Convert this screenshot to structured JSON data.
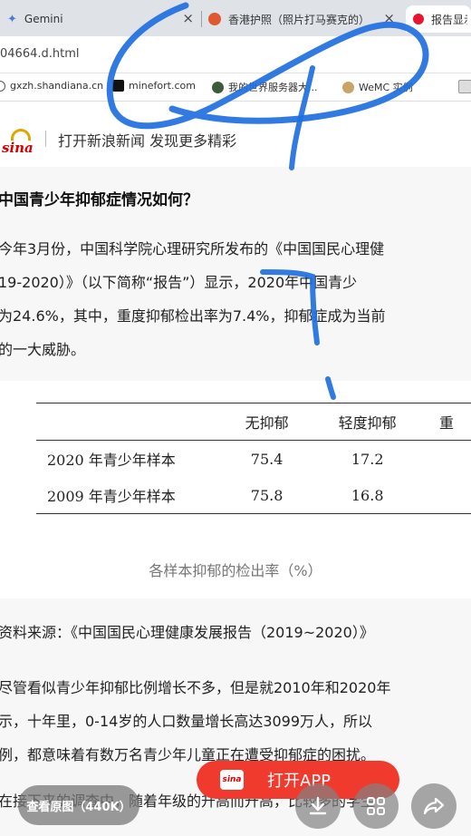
{
  "browser": {
    "tabs": [
      {
        "title": "Gemini",
        "close": "×"
      },
      {
        "title": "香港护照（照片打马赛克的）",
        "close": "×"
      },
      {
        "title": "报告显示"
      }
    ],
    "url": "04664.d.html",
    "bookmarks": [
      "gxzh.shandiana.cn",
      "minefort.com",
      "我的世界服务器大...",
      "WeMC 实例"
    ]
  },
  "header": {
    "logo_text": "sina",
    "tagline": "打开新浪新闻 发现更多精彩"
  },
  "article": {
    "heading": "中国青少年抑郁症情况如何？",
    "para1": [
      "今年3月份，中国科学院心理研究所发布的《中国国民心理健",
      "19-2020）》（以下简称“报告”）显示，2020年中国青少",
      "为24.6%，其中，重度抑郁检出率为7.4%，抑郁症成为当前",
      "的一大威胁。"
    ],
    "source": "资料来源：《中国国民心理健康发展报告（2019~2020）》",
    "para2": [
      "尽管看似青少年抑郁比例增长不多，但是就2010年和2020年",
      "示，十年里，0-14岁的人口数量增长高达3099万人，所以",
      "例，都意味着有数万名青少年儿童正在遭受抑郁症的困扰。"
    ],
    "last_line": "在接下来的调查中，随着年级的升高而升高，比较多的学生"
  },
  "table": {
    "columns": [
      "",
      "无抑郁",
      "轻度抑郁",
      "重"
    ],
    "rows": [
      [
        "2020 年青少年样本",
        "75.4",
        "17.2",
        ""
      ],
      [
        "2009 年青少年样本",
        "75.8",
        "16.8",
        ""
      ]
    ],
    "caption": "各样本抑郁的检出率（%）"
  },
  "controls": {
    "view_original": "查看原图（440K）",
    "open_app": "打开APP",
    "open_app_logo": "sina"
  },
  "colors": {
    "accent_red": "#f03a2e",
    "scribble_blue": "#1f6fe0"
  }
}
